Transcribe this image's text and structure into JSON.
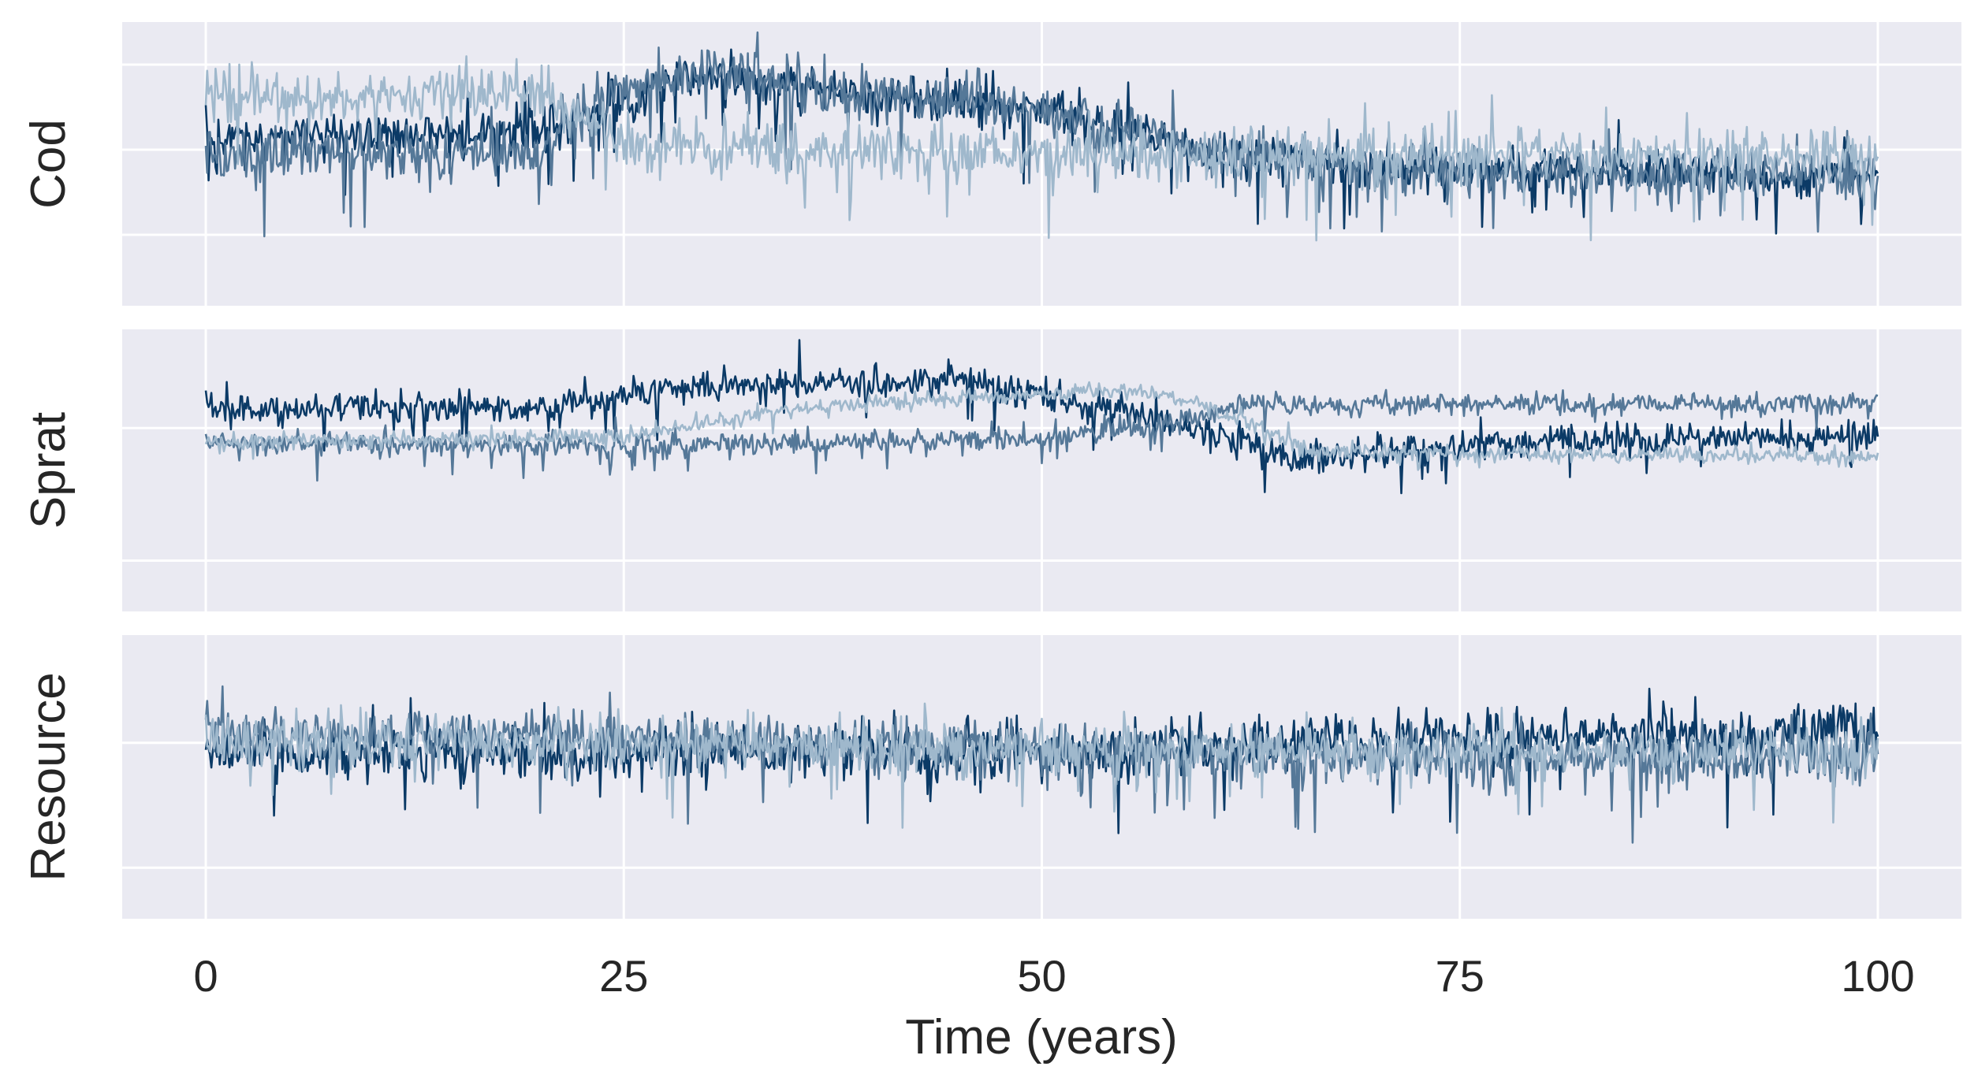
{
  "chart_data": {
    "type": "line",
    "xlabel": "Time (years)",
    "xlim": [
      -5,
      105
    ],
    "x_ticks": [
      0,
      25,
      50,
      75,
      100
    ],
    "grid": true,
    "legend": "none",
    "colors": {
      "background": "#eaeaf2",
      "grid": "#ffffff",
      "series_dark": "#0b3a66",
      "series_mid": "#557898",
      "series_light": "#9fb8cc"
    },
    "panels": [
      {
        "ylabel": "Cod",
        "ylim": [
          0,
          10
        ],
        "yticks": [
          2.5,
          5.5,
          8.5
        ],
        "series": [
          {
            "color": "#0b3a66",
            "noise": 0.7,
            "spikes": 0.05,
            "trend": [
              [
                0,
                6.0
              ],
              [
                20,
                6.1
              ],
              [
                22,
                6.6
              ],
              [
                30,
                8.2
              ],
              [
                35,
                7.7
              ],
              [
                50,
                6.9
              ],
              [
                60,
                5.4
              ],
              [
                70,
                4.9
              ],
              [
                100,
                4.6
              ]
            ]
          },
          {
            "color": "#557898",
            "noise": 0.8,
            "spikes": 0.06,
            "trend": [
              [
                0,
                5.4
              ],
              [
                20,
                5.3
              ],
              [
                22,
                6.6
              ],
              [
                25,
                7.6
              ],
              [
                30,
                8.4
              ],
              [
                35,
                7.7
              ],
              [
                50,
                6.9
              ],
              [
                60,
                5.4
              ],
              [
                70,
                4.8
              ],
              [
                100,
                4.5
              ]
            ]
          },
          {
            "color": "#9fb8cc",
            "noise": 0.8,
            "spikes": 0.06,
            "trend": [
              [
                0,
                7.2
              ],
              [
                20,
                7.6
              ],
              [
                25,
                5.7
              ],
              [
                50,
                5.3
              ],
              [
                75,
                5.3
              ],
              [
                100,
                5.3
              ]
            ]
          }
        ]
      },
      {
        "ylabel": "Sprat",
        "ylim": [
          0,
          10
        ],
        "yticks": [
          1.8,
          6.5
        ],
        "series": [
          {
            "color": "#0b3a66",
            "noise": 0.5,
            "spikes": 0.03,
            "trend": [
              [
                0,
                7.2
              ],
              [
                20,
                7.2
              ],
              [
                30,
                8.0
              ],
              [
                45,
                8.2
              ],
              [
                55,
                7.1
              ],
              [
                60,
                6.4
              ],
              [
                65,
                5.4
              ],
              [
                80,
                6.1
              ],
              [
                100,
                6.2
              ]
            ]
          },
          {
            "color": "#557898",
            "noise": 0.35,
            "spikes": 0.05,
            "trend": [
              [
                0,
                6.0
              ],
              [
                25,
                5.9
              ],
              [
                50,
                6.1
              ],
              [
                58,
                6.7
              ],
              [
                62,
                7.3
              ],
              [
                100,
                7.4
              ]
            ]
          },
          {
            "color": "#9fb8cc",
            "noise": 0.25,
            "spikes": 0.02,
            "trend": [
              [
                0,
                6.0
              ],
              [
                25,
                6.2
              ],
              [
                35,
                7.2
              ],
              [
                50,
                7.7
              ],
              [
                57,
                7.8
              ],
              [
                62,
                6.8
              ],
              [
                66,
                5.7
              ],
              [
                75,
                5.6
              ],
              [
                100,
                5.5
              ]
            ]
          }
        ]
      },
      {
        "ylabel": "Resource",
        "ylim": [
          0,
          10
        ],
        "yticks": [
          1.8,
          6.2
        ],
        "series": [
          {
            "color": "#0b3a66",
            "noise": 0.9,
            "spikes": 0.04,
            "trend": [
              [
                0,
                5.9
              ],
              [
                50,
                5.9
              ],
              [
                75,
                6.3
              ],
              [
                100,
                6.6
              ]
            ]
          },
          {
            "color": "#557898",
            "noise": 0.8,
            "spikes": 0.05,
            "trend": [
              [
                0,
                6.6
              ],
              [
                25,
                6.3
              ],
              [
                50,
                5.9
              ],
              [
                75,
                5.6
              ],
              [
                100,
                5.7
              ]
            ]
          },
          {
            "color": "#9fb8cc",
            "noise": 0.8,
            "spikes": 0.04,
            "trend": [
              [
                0,
                6.3
              ],
              [
                50,
                6.0
              ],
              [
                75,
                5.9
              ],
              [
                100,
                5.8
              ]
            ]
          }
        ]
      }
    ]
  }
}
